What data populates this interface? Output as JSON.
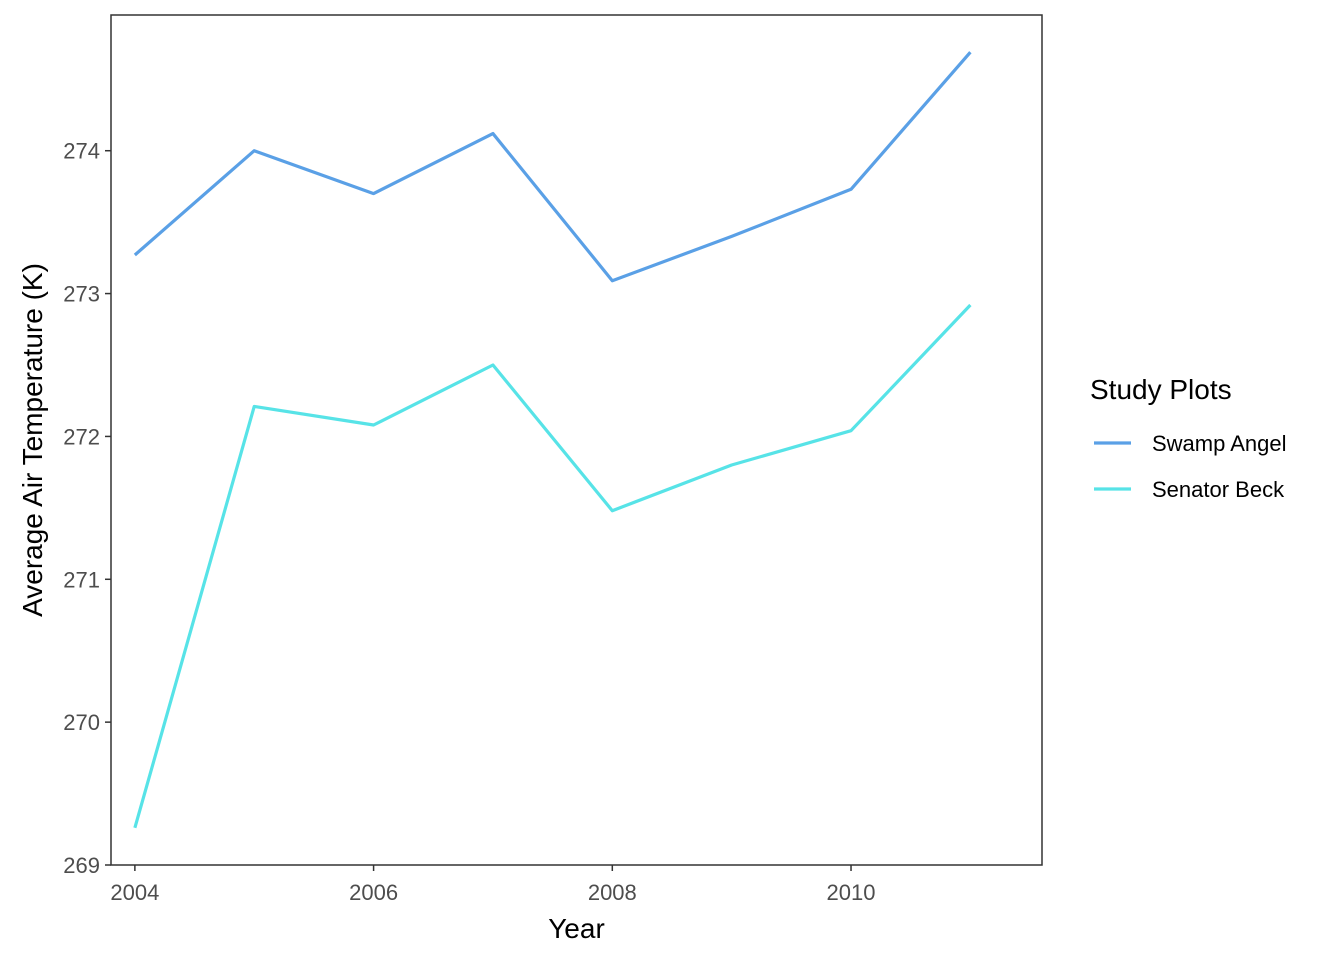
{
  "chart_data": {
    "type": "line",
    "xlabel": "Year",
    "ylabel": "Average Air Temperature (K)",
    "x": [
      2004,
      2005,
      2006,
      2007,
      2008,
      2009,
      2010,
      2011
    ],
    "xlim": [
      2003.8,
      2011.6
    ],
    "ylim": [
      269.0,
      274.95
    ],
    "xticks": [
      2004,
      2006,
      2008,
      2010
    ],
    "yticks": [
      269,
      270,
      271,
      272,
      273,
      274
    ],
    "grid": false,
    "legend": {
      "title": "Study Plots",
      "position": "right"
    },
    "series": [
      {
        "name": "Swamp Angel",
        "color": "#5aa0e6",
        "values": [
          273.27,
          274.0,
          273.7,
          274.12,
          273.09,
          273.4,
          273.73,
          274.69
        ]
      },
      {
        "name": "Senator Beck",
        "color": "#57e3e7",
        "values": [
          269.26,
          272.21,
          272.08,
          272.5,
          271.48,
          271.8,
          272.04,
          272.92
        ]
      }
    ]
  }
}
